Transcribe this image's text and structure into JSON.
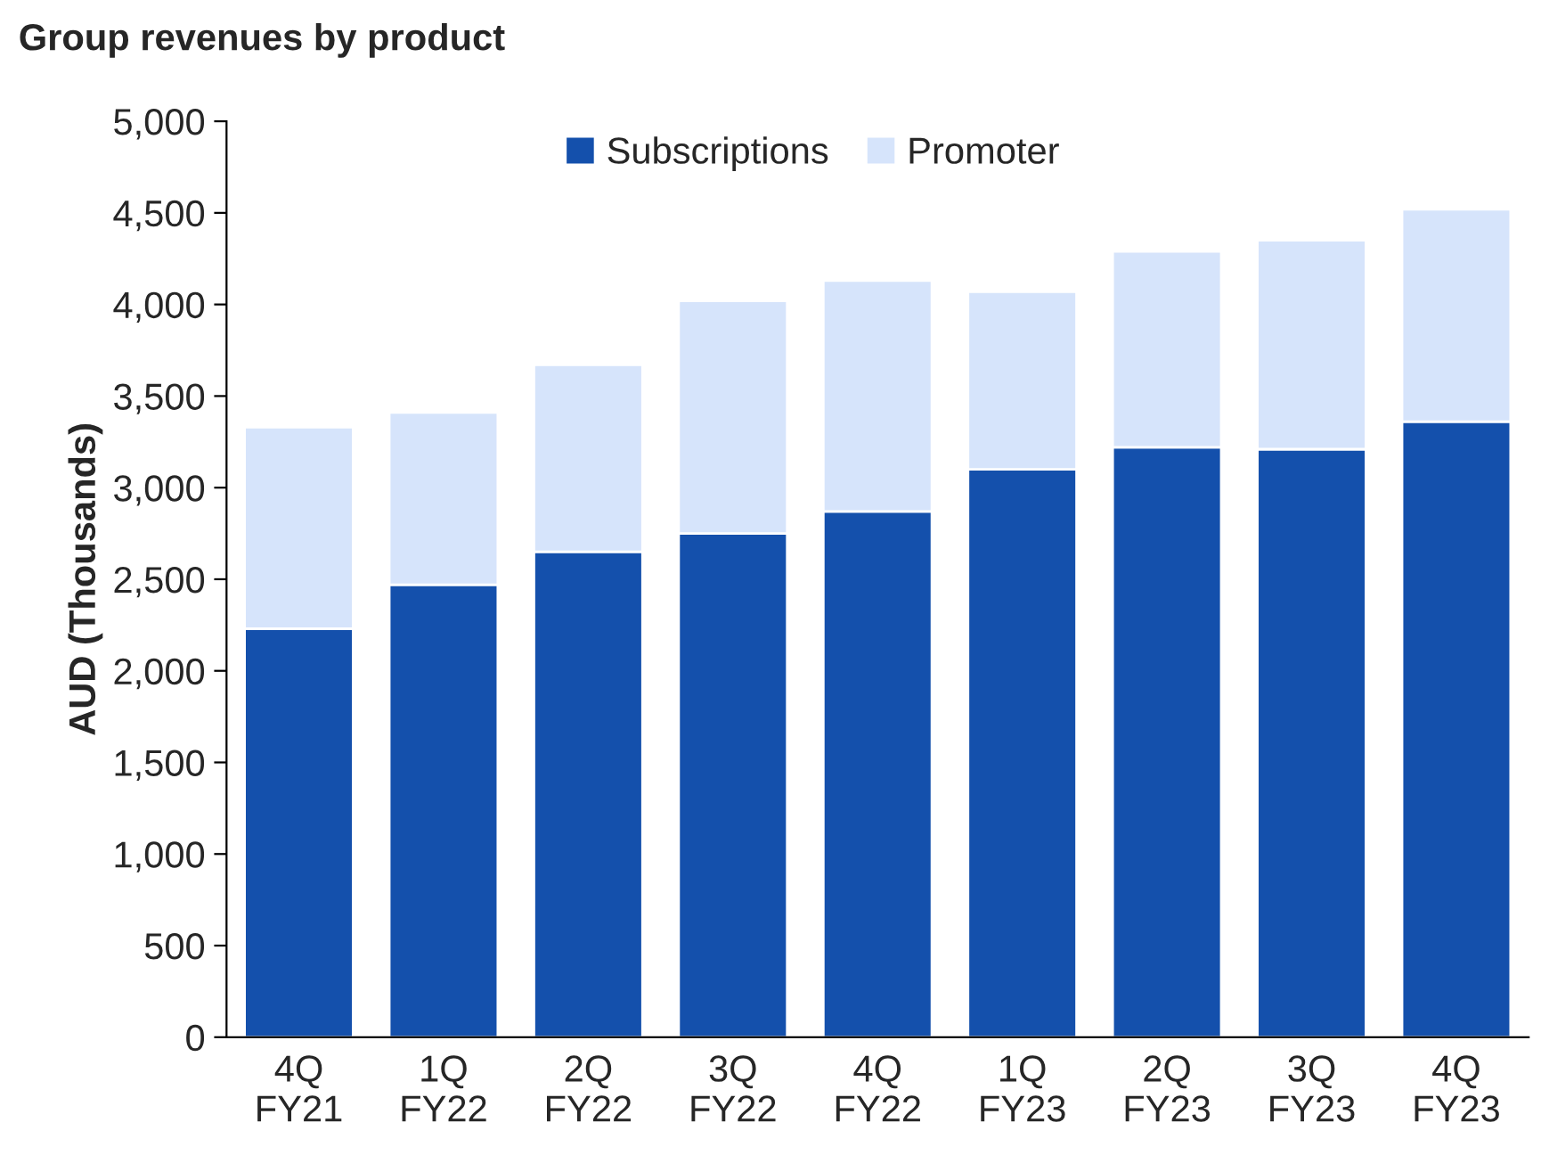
{
  "chart_data": {
    "type": "bar",
    "title": "Group revenues by product",
    "ylabel": "AUD (Thousands)",
    "categories": [
      "4Q\nFY21",
      "1Q\nFY22",
      "2Q\nFY22",
      "3Q\nFY22",
      "4Q\nFY22",
      "1Q\nFY23",
      "2Q\nFY23",
      "3Q\nFY23",
      "4Q\nFY23"
    ],
    "stacked": true,
    "series": [
      {
        "name": "Subscriptions",
        "color": "#1450ac",
        "values": [
          2230,
          2470,
          2650,
          2750,
          2870,
          3100,
          3220,
          3210,
          3360
        ]
      },
      {
        "name": "Promoter",
        "color": "#d6e4fb",
        "values": [
          1100,
          940,
          1020,
          1270,
          1260,
          970,
          1070,
          1140,
          1160
        ]
      }
    ],
    "ylim": [
      0,
      5000
    ],
    "yticks": [
      {
        "value": 0,
        "label": "0"
      },
      {
        "value": 500,
        "label": "500"
      },
      {
        "value": 1000,
        "label": "1,000"
      },
      {
        "value": 1500,
        "label": "1,500"
      },
      {
        "value": 2000,
        "label": "2,000"
      },
      {
        "value": 2500,
        "label": "2,500"
      },
      {
        "value": 3000,
        "label": "3,000"
      },
      {
        "value": 3500,
        "label": "3,500"
      },
      {
        "value": 4000,
        "label": "4,000"
      },
      {
        "value": 4500,
        "label": "4,500"
      },
      {
        "value": 5000,
        "label": "5,000"
      }
    ],
    "grid": false,
    "legend": "top"
  }
}
